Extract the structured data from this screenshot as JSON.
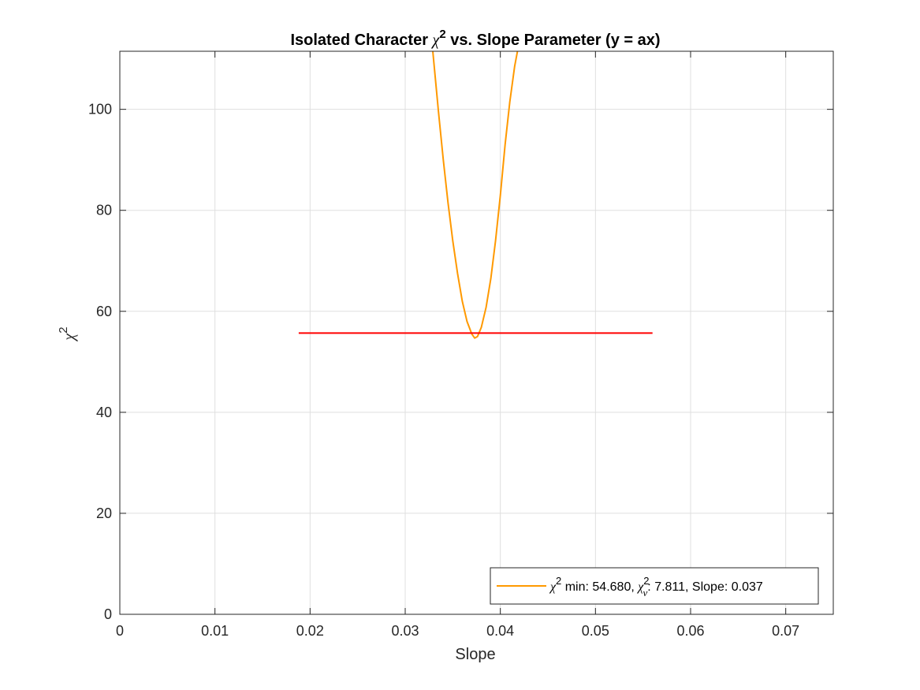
{
  "chart_data": {
    "type": "line",
    "title": {
      "prefix": "Isolated Character ",
      "chi": "χ",
      "sup": "2",
      "suffix": " vs. Slope Parameter (y = ax)"
    },
    "xlabel": "Slope",
    "ylabel": {
      "chi": "χ",
      "sup": "2"
    },
    "xlim": [
      0,
      0.075
    ],
    "ylim": [
      0,
      111.5
    ],
    "xticks": [
      0,
      0.01,
      0.02,
      0.03,
      0.04,
      0.05,
      0.06,
      0.07
    ],
    "xtick_labels": [
      "0",
      "0.01",
      "0.02",
      "0.03",
      "0.04",
      "0.05",
      "0.06",
      "0.07"
    ],
    "yticks": [
      0,
      20,
      40,
      60,
      80,
      100
    ],
    "ytick_labels": [
      "0",
      "20",
      "40",
      "60",
      "80",
      "100"
    ],
    "grid": true,
    "legend_position": "bottom-right",
    "series": [
      {
        "kind": "curve",
        "color": "#FF9900",
        "x": [
          0.0329,
          0.0335,
          0.034,
          0.0345,
          0.035,
          0.0355,
          0.036,
          0.0365,
          0.037,
          0.0373,
          0.0376,
          0.038,
          0.0385,
          0.039,
          0.0395,
          0.04,
          0.0405,
          0.041,
          0.0415,
          0.0418
        ],
        "y": [
          111.5,
          99.5,
          90.0,
          81.5,
          74.0,
          67.5,
          62.0,
          58.0,
          55.5,
          54.7,
          55.0,
          56.8,
          60.8,
          66.5,
          74.0,
          83.0,
          93.0,
          101.5,
          108.5,
          111.5
        ]
      },
      {
        "kind": "hline",
        "color": "#FF0000",
        "x": [
          0.0188,
          0.056
        ],
        "y": [
          55.68,
          55.68
        ]
      }
    ],
    "legend": {
      "chi": "χ",
      "sup": "2",
      "min_text": " min: 54.680, ",
      "chi_nu": "χ",
      "nu_sub": "ν",
      "nu_sup": "2",
      "rest_text": ": 7.811, Slope: 0.037"
    }
  }
}
